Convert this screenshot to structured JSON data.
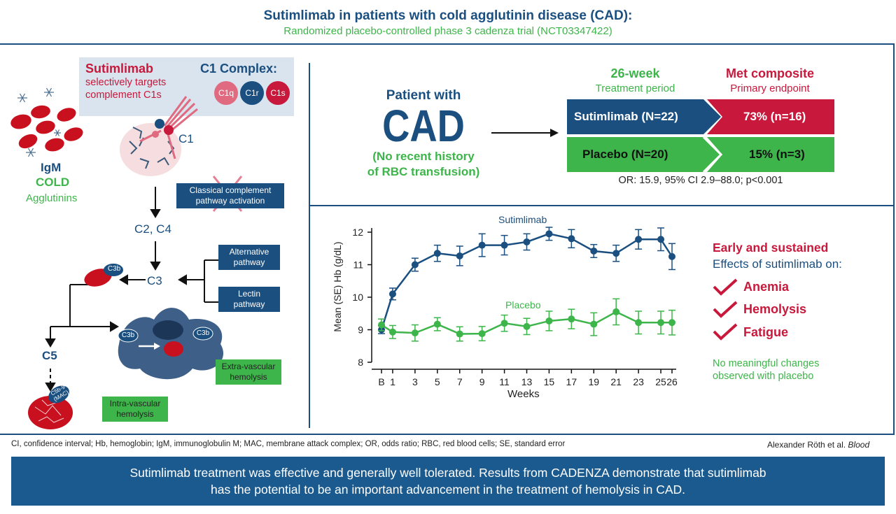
{
  "header": {
    "title": "Sutimlimab in patients with cold agglutinin disease (CAD):",
    "subtitle": "Randomized placebo-controlled phase 3 cadenza trial (NCT03347422)"
  },
  "mechanism": {
    "drug_name": "Sutimlimab",
    "drug_desc_1": "selectively targets",
    "drug_desc_2": "complement C1s",
    "complex_title": "C1 Complex:",
    "c1q": "C1q",
    "c1r": "C1r",
    "c1s": "C1s",
    "c1_label": "C1",
    "igm": "IgM",
    "cold": "COLD",
    "agglutinins": "Agglutinins",
    "classical_1": "Classical complement",
    "classical_2": "pathway activation",
    "c2c4": "C2, C4",
    "alternative_1": "Alternative",
    "alternative_2": "pathway",
    "lectin_1": "Lectin",
    "lectin_2": "pathway",
    "c3": "C3",
    "c3b": "C3b",
    "c5": "C5",
    "mac_1": "C5b-9",
    "mac_2": "(MAC)",
    "extra_1": "Extra-vascular",
    "extra_2": "hemolysis",
    "intra_1": "Intra-vascular",
    "intra_2": "hemolysis"
  },
  "trial": {
    "patient_1": "Patient with",
    "cad": "CAD",
    "history_1": "(No recent history",
    "history_2": "of RBC transfusion)",
    "period_title": "26-week",
    "period_sub": "Treatment period",
    "endpoint_title": "Met composite",
    "endpoint_sub": "Primary endpoint",
    "arm_sutimlimab": "Sutimlimab (N=22)",
    "arm_placebo": "Placebo (N=20)",
    "result_sutimlimab": "73% (n=16)",
    "result_placebo": "15% (n=3)",
    "odds": "OR: 15.9, 95% CI 2.9–88.0; p<0.001"
  },
  "chart_data": {
    "type": "line",
    "ylabel": "Mean (SE) Hb (g/dL)",
    "xlabel": "Weeks",
    "ylim": [
      8,
      12
    ],
    "yticks": [
      "8",
      "9",
      "10",
      "11",
      "12"
    ],
    "x": [
      0,
      1,
      3,
      5,
      7,
      9,
      11,
      13,
      15,
      17,
      19,
      21,
      23,
      25,
      26
    ],
    "xtick_labels": [
      "B",
      "1",
      "3",
      "5",
      "7",
      "9",
      "11",
      "13",
      "15",
      "17",
      "19",
      "21",
      "23",
      "25",
      "26"
    ],
    "series": [
      {
        "name": "Sutimlimab",
        "color": "#1a4f80",
        "values": [
          9.0,
          10.1,
          11.0,
          11.35,
          11.27,
          11.6,
          11.6,
          11.7,
          11.95,
          11.8,
          11.42,
          11.35,
          11.78,
          11.78,
          11.25
        ],
        "se": [
          0.12,
          0.18,
          0.2,
          0.25,
          0.3,
          0.35,
          0.3,
          0.25,
          0.2,
          0.28,
          0.2,
          0.25,
          0.3,
          0.35,
          0.4
        ]
      },
      {
        "name": "Placebo",
        "color": "#3db54a",
        "values": [
          9.15,
          8.93,
          8.9,
          9.17,
          8.87,
          8.88,
          9.2,
          9.1,
          9.27,
          9.33,
          9.17,
          9.55,
          9.22,
          9.22,
          9.22
        ],
        "se": [
          0.18,
          0.2,
          0.25,
          0.2,
          0.22,
          0.22,
          0.25,
          0.25,
          0.3,
          0.3,
          0.35,
          0.4,
          0.35,
          0.35,
          0.38
        ]
      }
    ]
  },
  "effects": {
    "title": "Early and sustained",
    "subtitle": "Effects of sutimlimab on:",
    "items": [
      "Anemia",
      "Hemolysis",
      "Fatigue"
    ],
    "placebo_1": "No meaningful changes",
    "placebo_2": "observed with placebo"
  },
  "abbreviations": "CI, confidence interval; Hb, hemoglobin; IgM, immunoglobulin M; MAC, membrane attack complex; OR, odds ratio; RBC, red blood cells; SE, standard error",
  "citation_author": "Alexander Röth et al.",
  "citation_journal": "Blood",
  "conclusion_1": "Sutimlimab treatment was effective and generally well tolerated. Results from CADENZA demonstrate that sutimlimab",
  "conclusion_2": "has the potential to be an important advancement in the treatment of hemolysis in CAD."
}
